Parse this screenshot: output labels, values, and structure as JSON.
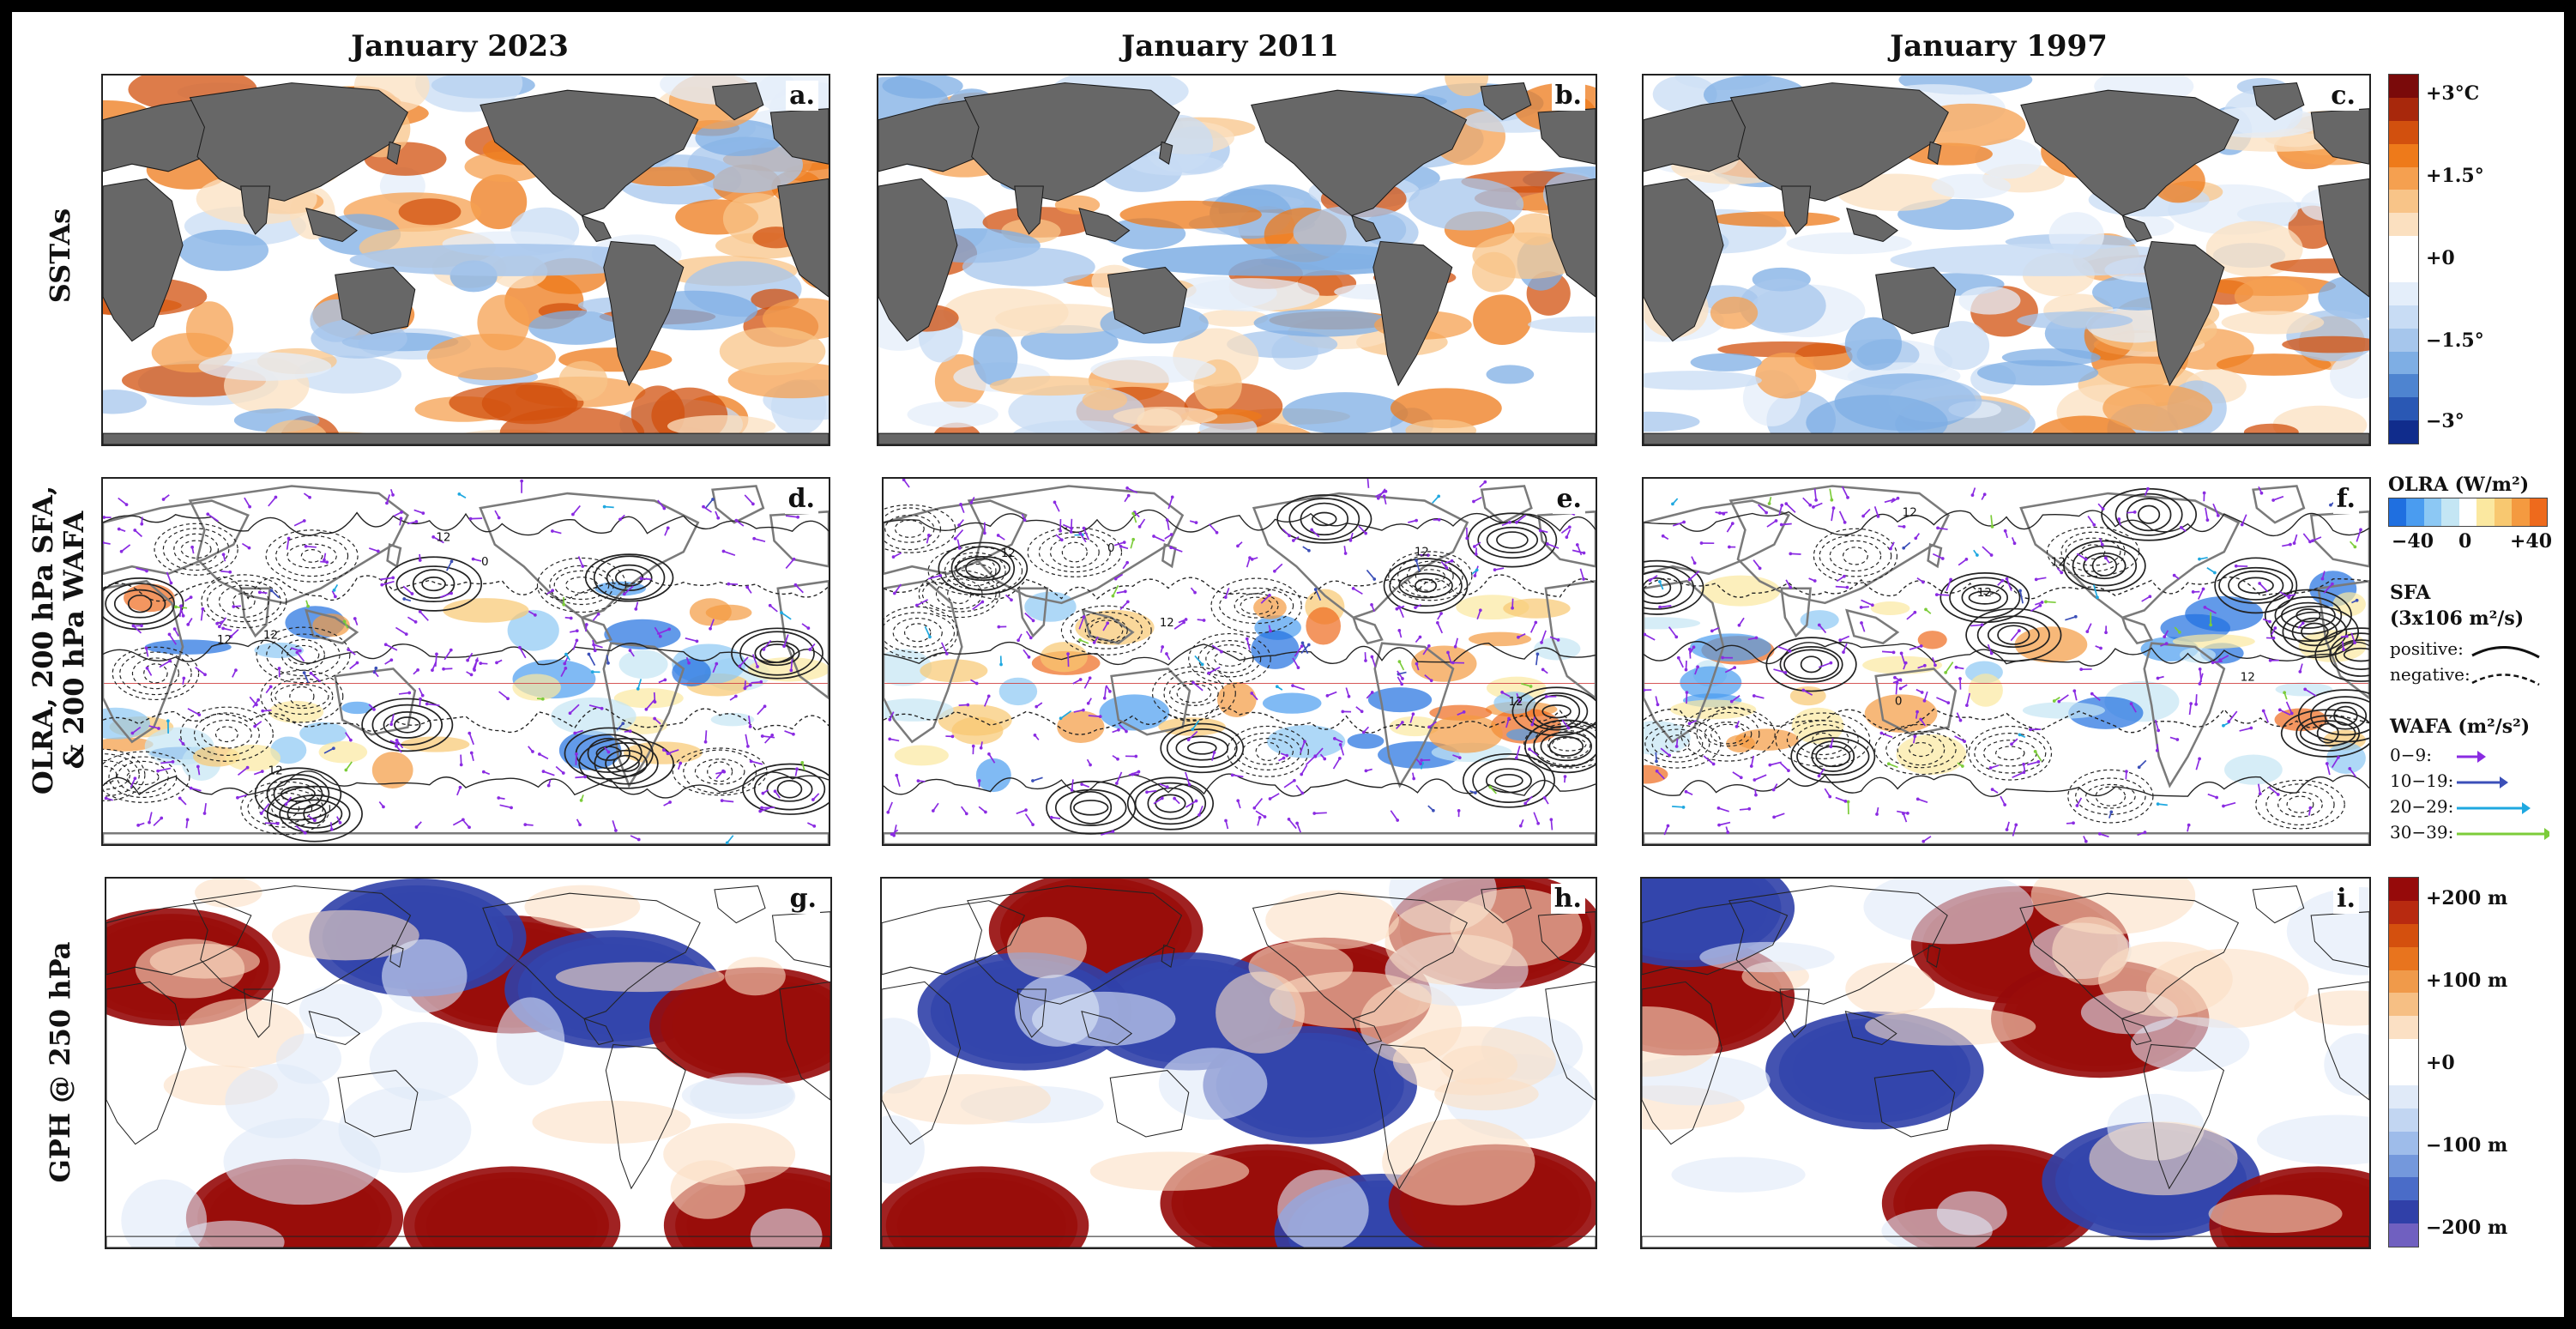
{
  "columns": [
    {
      "title": "January 2023"
    },
    {
      "title": "January 2011"
    },
    {
      "title": "January 1997"
    }
  ],
  "rows": [
    {
      "title": "SSTAs"
    },
    {
      "title_line1": "OLRA, 200 hPa SFA,",
      "title_line2": "& 200 hPa WAFA"
    },
    {
      "title": "GPH @ 250 hPa"
    }
  ],
  "panels": [
    {
      "label": "a.",
      "type": "sst",
      "seed": 1
    },
    {
      "label": "b.",
      "type": "sst",
      "seed": 2
    },
    {
      "label": "c.",
      "type": "sst",
      "seed": 3
    },
    {
      "label": "d.",
      "type": "olr",
      "seed": 4
    },
    {
      "label": "e.",
      "type": "olr",
      "seed": 5
    },
    {
      "label": "f.",
      "type": "olr",
      "seed": 6
    },
    {
      "label": "g.",
      "type": "gph",
      "seed": 7
    },
    {
      "label": "h.",
      "type": "gph",
      "seed": 8
    },
    {
      "label": "i.",
      "type": "gph",
      "seed": 9
    }
  ],
  "sst_colorbar": {
    "ticks": [
      "+3°C",
      "+1.5°",
      "+0",
      "−1.5°",
      "−3°"
    ],
    "colors": [
      "#7a0a0a",
      "#a8280c",
      "#d2500e",
      "#ee7a1a",
      "#f5a050",
      "#f8c488",
      "#fbe0c0",
      "#ffffff",
      "#ffffff",
      "#e4eefa",
      "#c8dcf4",
      "#a6c6ec",
      "#7eaee4",
      "#4e84d0",
      "#2a58b4",
      "#102c8c"
    ]
  },
  "olr_legend": {
    "title": "OLRA (W/m²)",
    "ticks": [
      "−40",
      "0",
      "+40"
    ],
    "colors": [
      "#1f6fe0",
      "#4a9cf0",
      "#8cc8f4",
      "#c4e6f4",
      "#ffffff",
      "#fbe8a0",
      "#f8c870",
      "#f49a40",
      "#ee6a1c"
    ],
    "sfa_title_line1": "SFA",
    "sfa_title_line2": "(3x106 m²/s)",
    "sfa_positive": "positive:",
    "sfa_negative": "negative:",
    "wafa_title": "WAFA (m²/s²)",
    "wafa_items": [
      {
        "label": "0−9:",
        "color": "#8a2be2"
      },
      {
        "label": "10−19:",
        "color": "#3b4fb8"
      },
      {
        "label": "20−29:",
        "color": "#1fa8e0"
      },
      {
        "label": "30−39:",
        "color": "#7ccc3a"
      }
    ]
  },
  "gph_colorbar": {
    "ticks": [
      "+200 m",
      "+100 m",
      "+0",
      "−100 m",
      "−200 m"
    ],
    "colors": [
      "#960a0a",
      "#b82a10",
      "#d4500e",
      "#e8741e",
      "#f09a4a",
      "#f6bf84",
      "#fbe0c4",
      "#ffffff",
      "#ffffff",
      "#e0eaf8",
      "#c2d6f2",
      "#9ebcea",
      "#7498dc",
      "#4a6cc8",
      "#3040a8",
      "#7060c0"
    ]
  },
  "contour_labels": {
    "value": "12",
    "zero": "0"
  }
}
